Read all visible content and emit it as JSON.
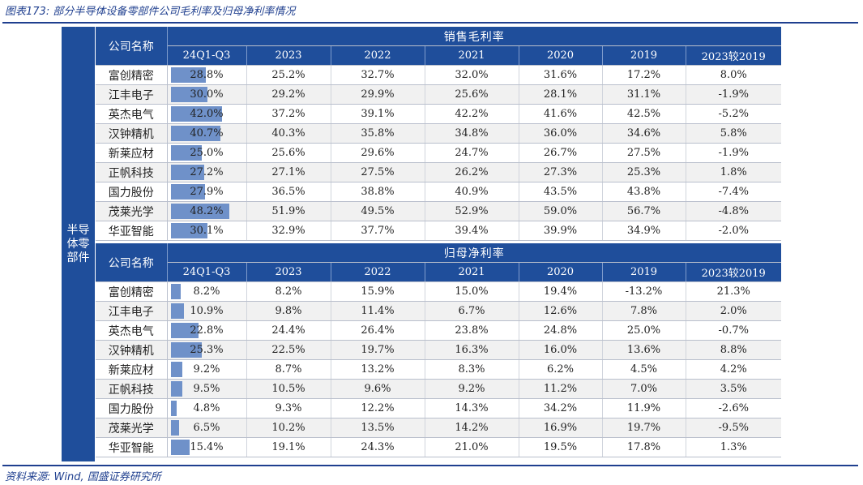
{
  "title": "图表173: 部分半导体设备零部件公司毛利率及归母净利率情况",
  "source": "资料来源: Wind, 国盛证券研究所",
  "side_label": "半导体零部件",
  "name_header": "公司名称",
  "bar_max": 60,
  "gross": {
    "section_label": "销售毛利率",
    "columns": [
      "24Q1-Q3",
      "2023",
      "2022",
      "2021",
      "2020",
      "2019",
      "2023较2019"
    ],
    "rows": [
      {
        "name": "富创精密",
        "bar": 28.8,
        "values": [
          "28.8%",
          "25.2%",
          "32.7%",
          "32.0%",
          "31.6%",
          "17.2%",
          "8.0%"
        ]
      },
      {
        "name": "江丰电子",
        "bar": 30.0,
        "values": [
          "30.0%",
          "29.2%",
          "29.9%",
          "25.6%",
          "28.1%",
          "31.1%",
          "-1.9%"
        ]
      },
      {
        "name": "英杰电气",
        "bar": 42.0,
        "values": [
          "42.0%",
          "37.2%",
          "39.1%",
          "42.2%",
          "41.6%",
          "42.5%",
          "-5.2%"
        ]
      },
      {
        "name": "汉钟精机",
        "bar": 40.7,
        "values": [
          "40.7%",
          "40.3%",
          "35.8%",
          "34.8%",
          "36.0%",
          "34.6%",
          "5.8%"
        ]
      },
      {
        "name": "新莱应材",
        "bar": 25.0,
        "values": [
          "25.0%",
          "25.6%",
          "29.6%",
          "24.7%",
          "26.7%",
          "27.5%",
          "-1.9%"
        ]
      },
      {
        "name": "正帆科技",
        "bar": 27.2,
        "values": [
          "27.2%",
          "27.1%",
          "27.5%",
          "26.2%",
          "27.3%",
          "25.3%",
          "1.8%"
        ]
      },
      {
        "name": "国力股份",
        "bar": 27.9,
        "values": [
          "27.9%",
          "36.5%",
          "38.8%",
          "40.9%",
          "43.5%",
          "43.8%",
          "-7.4%"
        ]
      },
      {
        "name": "茂莱光学",
        "bar": 48.2,
        "values": [
          "48.2%",
          "51.9%",
          "49.5%",
          "52.9%",
          "59.0%",
          "56.7%",
          "-4.8%"
        ]
      },
      {
        "name": "华亚智能",
        "bar": 30.1,
        "values": [
          "30.1%",
          "32.9%",
          "37.7%",
          "39.4%",
          "39.9%",
          "34.9%",
          "-2.0%"
        ]
      }
    ]
  },
  "net": {
    "section_label": "归母净利率",
    "columns": [
      "24Q1-Q3",
      "2023",
      "2022",
      "2021",
      "2020",
      "2019",
      "2023较2019"
    ],
    "rows": [
      {
        "name": "富创精密",
        "bar": 8.2,
        "values": [
          "8.2%",
          "8.2%",
          "15.9%",
          "15.0%",
          "19.4%",
          "-13.2%",
          "21.3%"
        ]
      },
      {
        "name": "江丰电子",
        "bar": 10.9,
        "values": [
          "10.9%",
          "9.8%",
          "11.4%",
          "6.7%",
          "12.6%",
          "7.8%",
          "2.0%"
        ]
      },
      {
        "name": "英杰电气",
        "bar": 22.8,
        "values": [
          "22.8%",
          "24.4%",
          "26.4%",
          "23.8%",
          "24.8%",
          "25.0%",
          "-0.7%"
        ]
      },
      {
        "name": "汉钟精机",
        "bar": 25.3,
        "values": [
          "25.3%",
          "22.5%",
          "19.7%",
          "16.3%",
          "16.0%",
          "13.6%",
          "8.8%"
        ]
      },
      {
        "name": "新莱应材",
        "bar": 9.2,
        "values": [
          "9.2%",
          "8.7%",
          "13.2%",
          "8.3%",
          "6.2%",
          "4.5%",
          "4.2%"
        ]
      },
      {
        "name": "正帆科技",
        "bar": 9.5,
        "values": [
          "9.5%",
          "10.5%",
          "9.6%",
          "9.2%",
          "11.2%",
          "7.0%",
          "3.5%"
        ]
      },
      {
        "name": "国力股份",
        "bar": 4.8,
        "values": [
          "4.8%",
          "9.3%",
          "12.2%",
          "14.3%",
          "34.2%",
          "11.9%",
          "-2.6%"
        ]
      },
      {
        "name": "茂莱光学",
        "bar": 6.5,
        "values": [
          "6.5%",
          "10.2%",
          "13.5%",
          "14.2%",
          "16.9%",
          "19.7%",
          "-9.5%"
        ]
      },
      {
        "name": "华亚智能",
        "bar": 15.4,
        "values": [
          "15.4%",
          "19.1%",
          "24.3%",
          "21.0%",
          "19.5%",
          "17.8%",
          "1.3%"
        ]
      }
    ]
  }
}
